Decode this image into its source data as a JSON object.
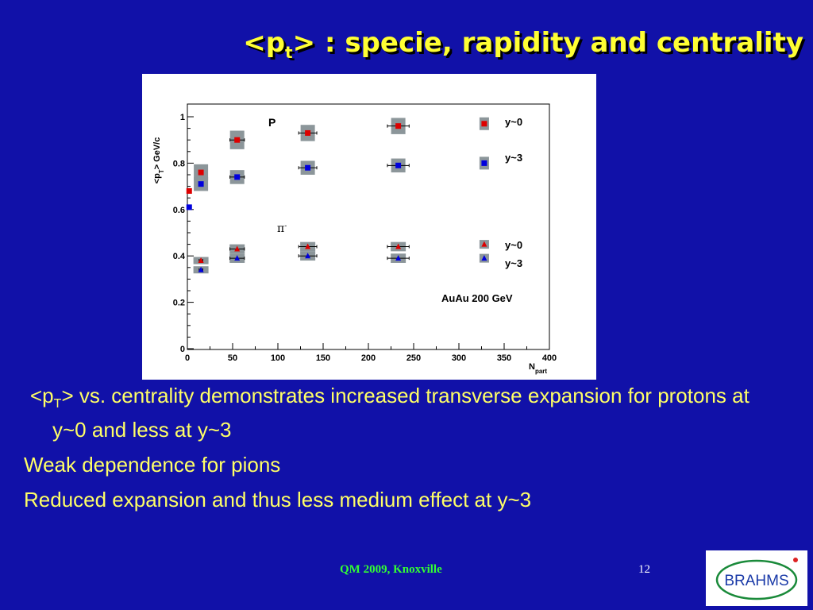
{
  "slide": {
    "title_prefix": "<p",
    "title_sub": "t",
    "title_suffix": "> : specie, rapidity and centrality"
  },
  "bullets": [
    {
      "prefix": "<p",
      "sub": "T",
      "mid": ">",
      "text": " vs. centrality demonstrates increased  transverse expansion for protons at y~0 and less at y~3"
    },
    {
      "text": "Weak dependence for pions"
    },
    {
      "text": "Reduced expansion and thus less medium effect at y~3"
    }
  ],
  "footer": {
    "conference": "QM 2009, Knoxville",
    "page": "12"
  },
  "logo": {
    "text": "BRAHMS"
  },
  "colors": {
    "background": "#1111a8",
    "title": "#ffff33",
    "bullet_text": "#ffff66",
    "footer_green": "#33ff33",
    "proton_y0": "#dd0000",
    "proton_y3": "#0000dd",
    "syst_band": "#8c969a"
  },
  "chart_data": {
    "type": "scatter",
    "ylabel_prefix": "<p",
    "ylabel_sub": "T",
    "ylabel_suffix": "> GeV/c",
    "xlabel_main": "N",
    "xlabel_sub": "part",
    "xlim": [
      0,
      400
    ],
    "ylim": [
      0,
      1
    ],
    "xticks": [
      0,
      50,
      100,
      150,
      200,
      250,
      300,
      350,
      400
    ],
    "yticks": [
      0,
      0.2,
      0.4,
      0.6,
      0.8,
      1
    ],
    "annotations": {
      "proton_label": "P",
      "pion_label": "π",
      "pion_charge": "-",
      "system": "AuAu 200 GeV"
    },
    "legend": [
      {
        "label": "y~0",
        "marker": "square",
        "color": "#dd0000",
        "x": 328,
        "y": 0.97
      },
      {
        "label": "y~3",
        "marker": "square",
        "color": "#0000dd",
        "x": 328,
        "y": 0.8
      },
      {
        "label": "y~0",
        "marker": "triangle",
        "color": "#dd0000",
        "x": 328,
        "y": 0.45
      },
      {
        "label": "y~3",
        "marker": "triangle",
        "color": "#0000dd",
        "x": 328,
        "y": 0.39
      }
    ],
    "series": [
      {
        "marker": "square",
        "color": "#dd0000",
        "x": [
          2,
          15,
          55,
          133,
          233
        ],
        "y": [
          0.68,
          0.76,
          0.9,
          0.93,
          0.96
        ],
        "xerr": [
          0,
          2,
          8,
          10,
          12
        ],
        "syst": [
          0,
          0.035,
          0.04,
          0.035,
          0.035
        ]
      },
      {
        "marker": "square",
        "color": "#0000dd",
        "x": [
          2,
          15,
          55,
          133,
          233
        ],
        "y": [
          0.61,
          0.71,
          0.74,
          0.78,
          0.79
        ],
        "xerr": [
          0,
          2,
          8,
          10,
          12
        ],
        "syst": [
          0,
          0.03,
          0.03,
          0.03,
          0.03
        ]
      },
      {
        "marker": "triangle",
        "color": "#dd0000",
        "x": [
          15,
          55,
          133,
          233
        ],
        "y": [
          0.38,
          0.43,
          0.44,
          0.44
        ],
        "xerr": [
          2,
          8,
          10,
          12
        ],
        "syst": [
          0.015,
          0.02,
          0.02,
          0.02
        ]
      },
      {
        "marker": "triangle",
        "color": "#0000dd",
        "x": [
          15,
          55,
          133,
          233
        ],
        "y": [
          0.34,
          0.39,
          0.4,
          0.39
        ],
        "xerr": [
          2,
          8,
          10,
          12
        ],
        "syst": [
          0.015,
          0.02,
          0.02,
          0.02
        ]
      }
    ]
  }
}
